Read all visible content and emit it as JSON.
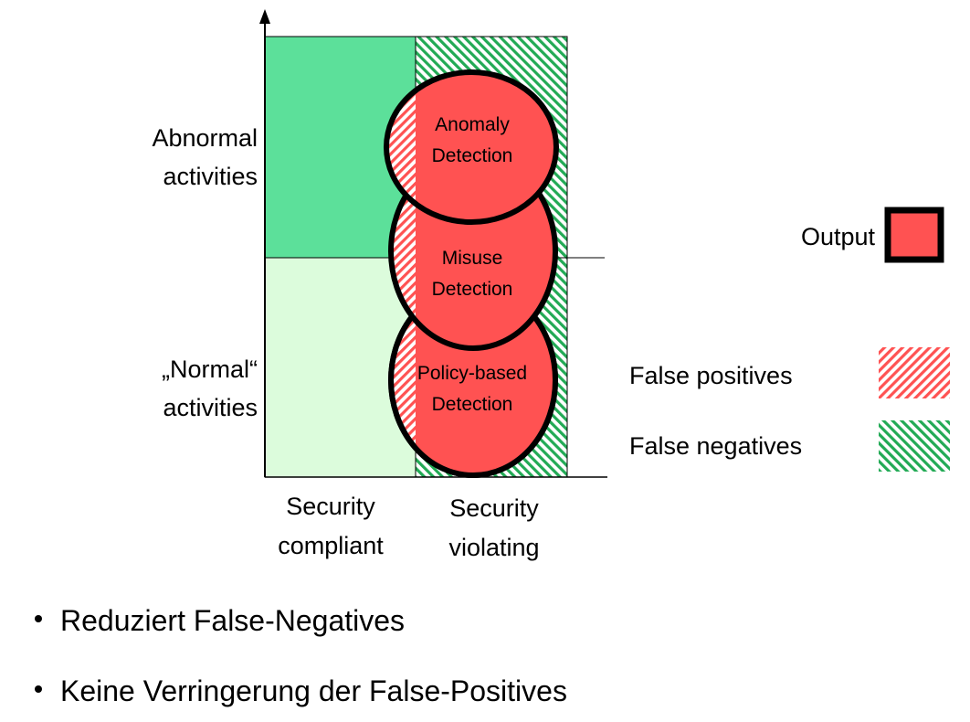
{
  "y_axis": {
    "upper_label": [
      "Abnormal",
      "activities"
    ],
    "lower_label": [
      "„Normal“",
      "activities"
    ]
  },
  "x_axis": {
    "left_label": [
      "Security",
      "compliant"
    ],
    "right_label": [
      "Security",
      "violating"
    ]
  },
  "detectors": [
    {
      "label": [
        "Anomaly",
        "Detection"
      ]
    },
    {
      "label": [
        "Misuse",
        "Detection"
      ]
    },
    {
      "label": [
        "Policy-based",
        "Detection"
      ]
    }
  ],
  "legend": {
    "output": "Output",
    "false_positives": "False positives",
    "false_negatives": "False negatives"
  },
  "bullets": [
    "Reduziert False-Negatives",
    "Keine Verringerung der False-Positives"
  ],
  "colors": {
    "abnormal_compliant": "#5ce09a",
    "normal_compliant": "#dcfcdc",
    "detection_fill": "#ff5252",
    "false_positive_hatch": "#ff5252",
    "false_negative_hatch": "#22aa55",
    "outline": "#000000"
  }
}
